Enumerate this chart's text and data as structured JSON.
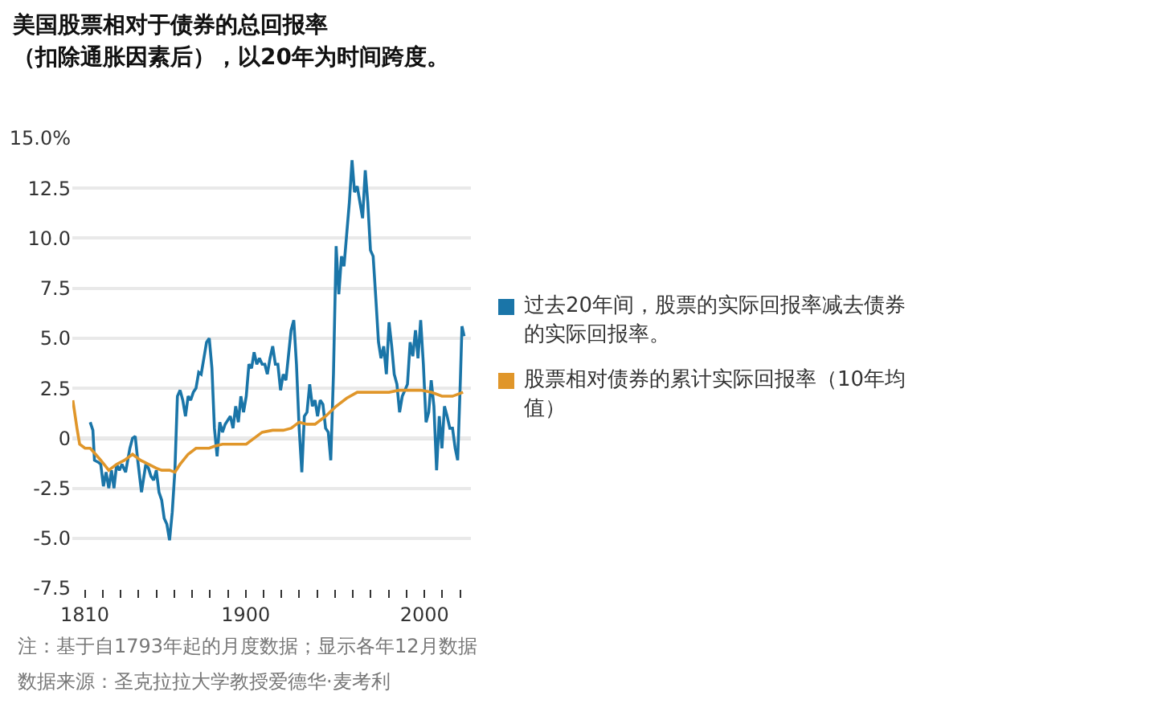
{
  "chart_data": {
    "type": "line",
    "title": "美国股票相对于债券的总回报率",
    "subtitle": "（扣除通胀因素后），以20年为时间跨度。",
    "annotations": [
      "注：基于自1793年起的月度数据；显示各年12月数据",
      "数据来源：圣克拉拉大学教授爱德华·麦考利"
    ],
    "xlim": [
      1803,
      2026
    ],
    "xticks": [
      {
        "value": 1810,
        "label": "1810"
      },
      {
        "value": 1820,
        "label": null
      },
      {
        "value": 1830,
        "label": null
      },
      {
        "value": 1840,
        "label": null
      },
      {
        "value": 1850,
        "label": null
      },
      {
        "value": 1860,
        "label": null
      },
      {
        "value": 1870,
        "label": null
      },
      {
        "value": 1880,
        "label": null
      },
      {
        "value": 1890,
        "label": null
      },
      {
        "value": 1900,
        "label": "1900"
      },
      {
        "value": 1910,
        "label": null
      },
      {
        "value": 1920,
        "label": null
      },
      {
        "value": 1930,
        "label": null
      },
      {
        "value": 1940,
        "label": null
      },
      {
        "value": 1950,
        "label": null
      },
      {
        "value": 1960,
        "label": null
      },
      {
        "value": 1970,
        "label": null
      },
      {
        "value": 1980,
        "label": null
      },
      {
        "value": 1990,
        "label": null
      },
      {
        "value": 2000,
        "label": "2000"
      },
      {
        "value": 2010,
        "label": null
      },
      {
        "value": 2020,
        "label": null
      }
    ],
    "ylim": [
      -7.5,
      15
    ],
    "yticks": [
      {
        "value": -7.5,
        "label": "-7.5"
      },
      {
        "value": -5,
        "label": "-5.0"
      },
      {
        "value": -2.5,
        "label": "-2.5"
      },
      0,
      {
        "value": 2.5,
        "label": "2.5"
      },
      {
        "value": 5,
        "label": "5.0"
      },
      {
        "value": 7.5,
        "label": "7.5"
      },
      {
        "value": 10,
        "label": "10.0"
      },
      {
        "value": 12.5,
        "label": "12.5"
      },
      {
        "value": 15,
        "label": "15.0%"
      }
    ],
    "grid": "y",
    "legend": "right",
    "ref_lines": [
      {
        "axis": "y",
        "value": 0,
        "label": null,
        "color": "#888888"
      }
    ],
    "series": [
      {
        "name": "过去20年间，股票的实际回报率减去债券的实际回报率。",
        "color": "#1a75a8",
        "x": [
          1813.0,
          1814.5,
          1815.4,
          1817.5,
          1818.9,
          1820.4,
          1821.9,
          1823.4,
          1824.9,
          1826.3,
          1827.8,
          1829.3,
          1830.8,
          1832.8,
          1835.2,
          1836.7,
          1838.2,
          1839.6,
          1841.7,
          1844.1,
          1845.6,
          1847.0,
          1848.5,
          1850.0,
          1851.5,
          1853.0,
          1854.4,
          1855.9,
          1857.4,
          1858.9,
          1860.4,
          1861.8,
          1863.3,
          1864.8,
          1866.3,
          1867.8,
          1869.2,
          1870.7,
          1872.2,
          1873.7,
          1875.1,
          1876.6,
          1878.1,
          1879.6,
          1881.1,
          1882.5,
          1884.0,
          1885.5,
          1887.0,
          1888.5,
          1891.4,
          1892.9,
          1894.4,
          1895.9,
          1897.3,
          1898.8,
          1900.3,
          1901.8,
          1903.3,
          1904.7,
          1906.2,
          1907.7,
          1909.2,
          1910.7,
          1912.1,
          1913.6,
          1915.1,
          1916.6,
          1918.0,
          1919.5,
          1921.0,
          1922.5,
          1925.4,
          1926.9,
          1928.4,
          1929.9,
          1931.4,
          1932.8,
          1934.3,
          1935.8,
          1937.3,
          1938.8,
          1940.2,
          1941.7,
          1943.2,
          1944.7,
          1946.2,
          1947.6,
          1949.1,
          1950.6,
          1952.1,
          1953.6,
          1955.0,
          1956.5,
          1958.0,
          1959.5,
          1960.9,
          1962.4,
          1963.9,
          1965.4,
          1966.9,
          1968.3,
          1969.8,
          1971.3,
          1972.8,
          1974.3,
          1975.7,
          1977.2,
          1978.7,
          1980.2,
          1981.7,
          1983.1,
          1984.6,
          1986.1,
          1987.6,
          1989.1,
          1990.5,
          1992.0,
          1993.5,
          1995.0,
          1996.4,
          1997.9,
          1999.4,
          2000.9,
          2002.4,
          2003.8,
          2005.3,
          2006.8,
          2008.3,
          2009.8,
          2011.2,
          2012.7,
          2014.2,
          2015.7,
          2017.2,
          2018.6,
          2020.1,
          2021.0,
          2022.2
        ],
        "values": [
          0.8,
          0.4,
          -1.1,
          -1.2,
          -1.3,
          -2.4,
          -1.7,
          -2.5,
          -1.6,
          -2.5,
          -1.3,
          -1.6,
          -1.3,
          -1.7,
          -0.5,
          0.0,
          0.1,
          -1.1,
          -2.7,
          -1.3,
          -1.5,
          -1.9,
          -2.1,
          -1.6,
          -2.7,
          -3.1,
          -4.0,
          -4.3,
          -5.1,
          -3.7,
          -1.6,
          2.1,
          2.4,
          1.9,
          1.1,
          2.1,
          1.9,
          2.3,
          2.5,
          3.3,
          3.2,
          4.0,
          4.8,
          5.0,
          3.5,
          0.5,
          -0.9,
          0.8,
          0.3,
          0.7,
          1.1,
          0.5,
          1.6,
          0.8,
          2.1,
          1.3,
          2.1,
          3.7,
          3.5,
          4.3,
          3.7,
          4.0,
          3.7,
          3.7,
          3.2,
          4.0,
          4.6,
          3.7,
          3.7,
          2.4,
          3.2,
          2.9,
          5.4,
          5.9,
          3.7,
          0.5,
          -1.7,
          1.1,
          1.3,
          2.7,
          1.6,
          1.9,
          1.1,
          1.9,
          1.7,
          0.5,
          0.3,
          -1.1,
          3.2,
          9.6,
          7.2,
          9.1,
          8.6,
          10.2,
          11.8,
          13.9,
          12.3,
          12.6,
          11.8,
          11.0,
          13.4,
          11.8,
          9.4,
          9.1,
          7.0,
          4.8,
          4.0,
          4.6,
          3.2,
          5.8,
          4.6,
          3.2,
          2.7,
          1.3,
          2.1,
          2.4,
          2.7,
          4.8,
          4.1,
          5.4,
          4.0,
          5.9,
          3.7,
          0.8,
          1.3,
          2.9,
          1.6,
          -1.6,
          1.1,
          -0.5,
          1.6,
          1.1,
          0.5,
          0.5,
          -0.5,
          -1.1,
          2.9,
          5.6,
          5.1
        ]
      },
      {
        "name": "股票相对债券的累计实际回报率（10年均值）",
        "color": "#e0962a",
        "x": [
          1803.3,
          1805.6,
          1807.1,
          1810.1,
          1813.0,
          1816.0,
          1818.9,
          1823.4,
          1827.8,
          1832.2,
          1836.7,
          1841.1,
          1845.6,
          1850.0,
          1853.0,
          1857.4,
          1860.4,
          1863.3,
          1867.8,
          1872.2,
          1876.6,
          1879.6,
          1882.5,
          1887.0,
          1894.4,
          1900.3,
          1904.7,
          1909.2,
          1915.1,
          1921.0,
          1925.4,
          1929.9,
          1934.3,
          1938.8,
          1944.7,
          1950.6,
          1956.5,
          1962.4,
          1968.3,
          1974.3,
          1980.2,
          1986.1,
          1992.0,
          1997.9,
          2003.8,
          2009.8,
          2015.7,
          2021.6
        ],
        "values": [
          1.9,
          0.5,
          -0.3,
          -0.5,
          -0.5,
          -0.8,
          -1.1,
          -1.6,
          -1.3,
          -1.1,
          -0.8,
          -1.1,
          -1.3,
          -1.5,
          -1.6,
          -1.6,
          -1.7,
          -1.3,
          -0.8,
          -0.5,
          -0.5,
          -0.5,
          -0.4,
          -0.3,
          -0.3,
          -0.3,
          0.0,
          0.3,
          0.4,
          0.4,
          0.5,
          0.8,
          0.7,
          0.7,
          1.1,
          1.6,
          2.0,
          2.3,
          2.3,
          2.3,
          2.3,
          2.4,
          2.4,
          2.4,
          2.3,
          2.1,
          2.1,
          2.3
        ]
      }
    ]
  }
}
